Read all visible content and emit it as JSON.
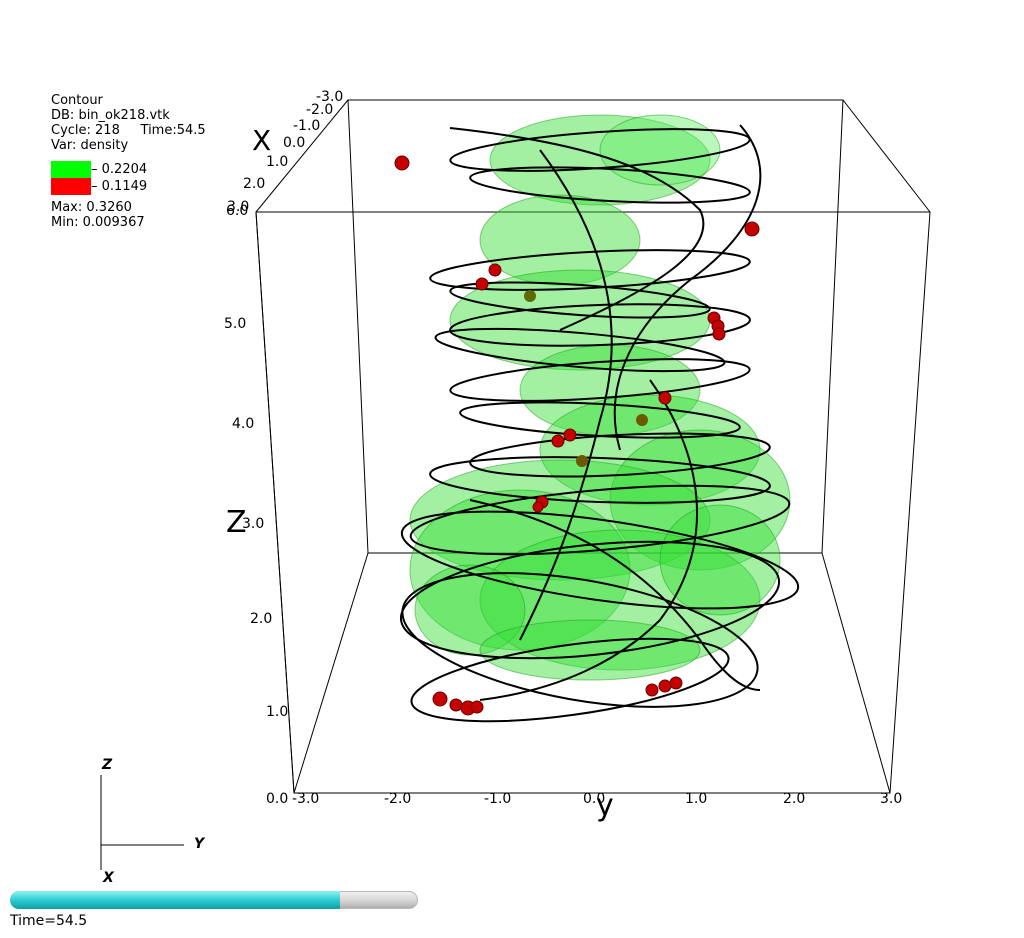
{
  "legend": {
    "plot_type": "Contour",
    "db": "DB: bin_ok218.vtk",
    "cycle": "Cycle: 218",
    "time": "Time:54.5",
    "var": "Var: density",
    "levels": [
      {
        "color": "#00ff00",
        "value": "0.2204"
      },
      {
        "color": "#ff0000",
        "value": "0.1149"
      }
    ],
    "max": "Max:  0.3260",
    "min": "Min:  0.009367"
  },
  "axes": {
    "x_title": "X",
    "y_title": "y",
    "z_title": "Z",
    "z_ticks": [
      "1.0",
      "2.0",
      "3.0",
      "4.0",
      "5.0",
      "6.0"
    ],
    "z_origin": "0.0",
    "y_ticks": [
      "-3.0",
      "-2.0",
      "-1.0",
      "0.0",
      "1.0",
      "2.0",
      "3.0"
    ],
    "x_ticks": [
      "-3.0",
      "-2.0",
      "-1.0",
      "0.0",
      "1.0",
      "2.0",
      "3.0"
    ]
  },
  "triad": {
    "z": "Z",
    "y": "Y",
    "x": "X"
  },
  "time_slider": {
    "label": "Time=54.5",
    "progress": 0.81
  },
  "colors": {
    "isosurface_green": "#22dd22",
    "particle_red": "#cc0000",
    "fieldline": "#000000"
  }
}
